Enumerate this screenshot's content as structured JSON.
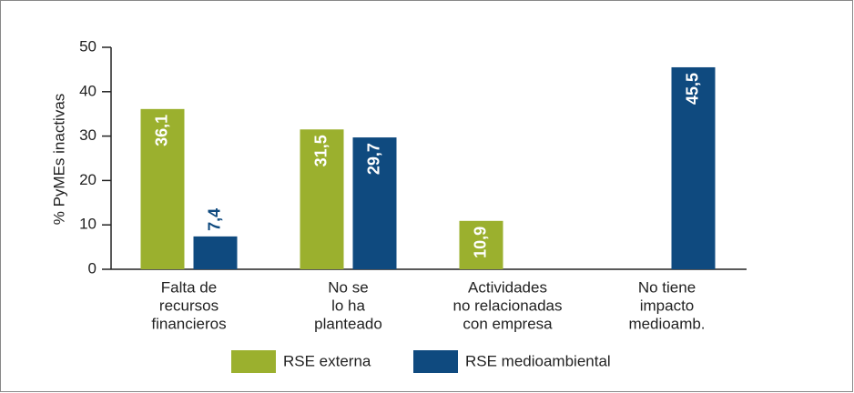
{
  "chart_data": {
    "type": "bar",
    "categories": [
      [
        "Falta de",
        "recursos",
        "financieros"
      ],
      [
        "No se",
        "lo ha",
        "planteado"
      ],
      [
        "Actividades",
        "no relacionadas",
        "con empresa"
      ],
      [
        "No tiene",
        "impacto",
        "medioamb."
      ]
    ],
    "series": [
      {
        "name": "RSE externa",
        "color": "#9bb02e",
        "values": [
          36.1,
          31.5,
          10.9,
          null
        ],
        "value_labels": [
          "36,1",
          "31,5",
          "10,9",
          null
        ]
      },
      {
        "name": "RSE medioambiental",
        "color": "#0f4a7f",
        "values": [
          7.4,
          29.7,
          null,
          45.5
        ],
        "value_labels": [
          "7,4",
          "29,7",
          null,
          "45,5"
        ]
      }
    ],
    "ylabel": "% PyMEs inactivas",
    "ylim": [
      0,
      50
    ],
    "yticks": [
      0,
      10,
      20,
      30,
      40,
      50
    ]
  }
}
